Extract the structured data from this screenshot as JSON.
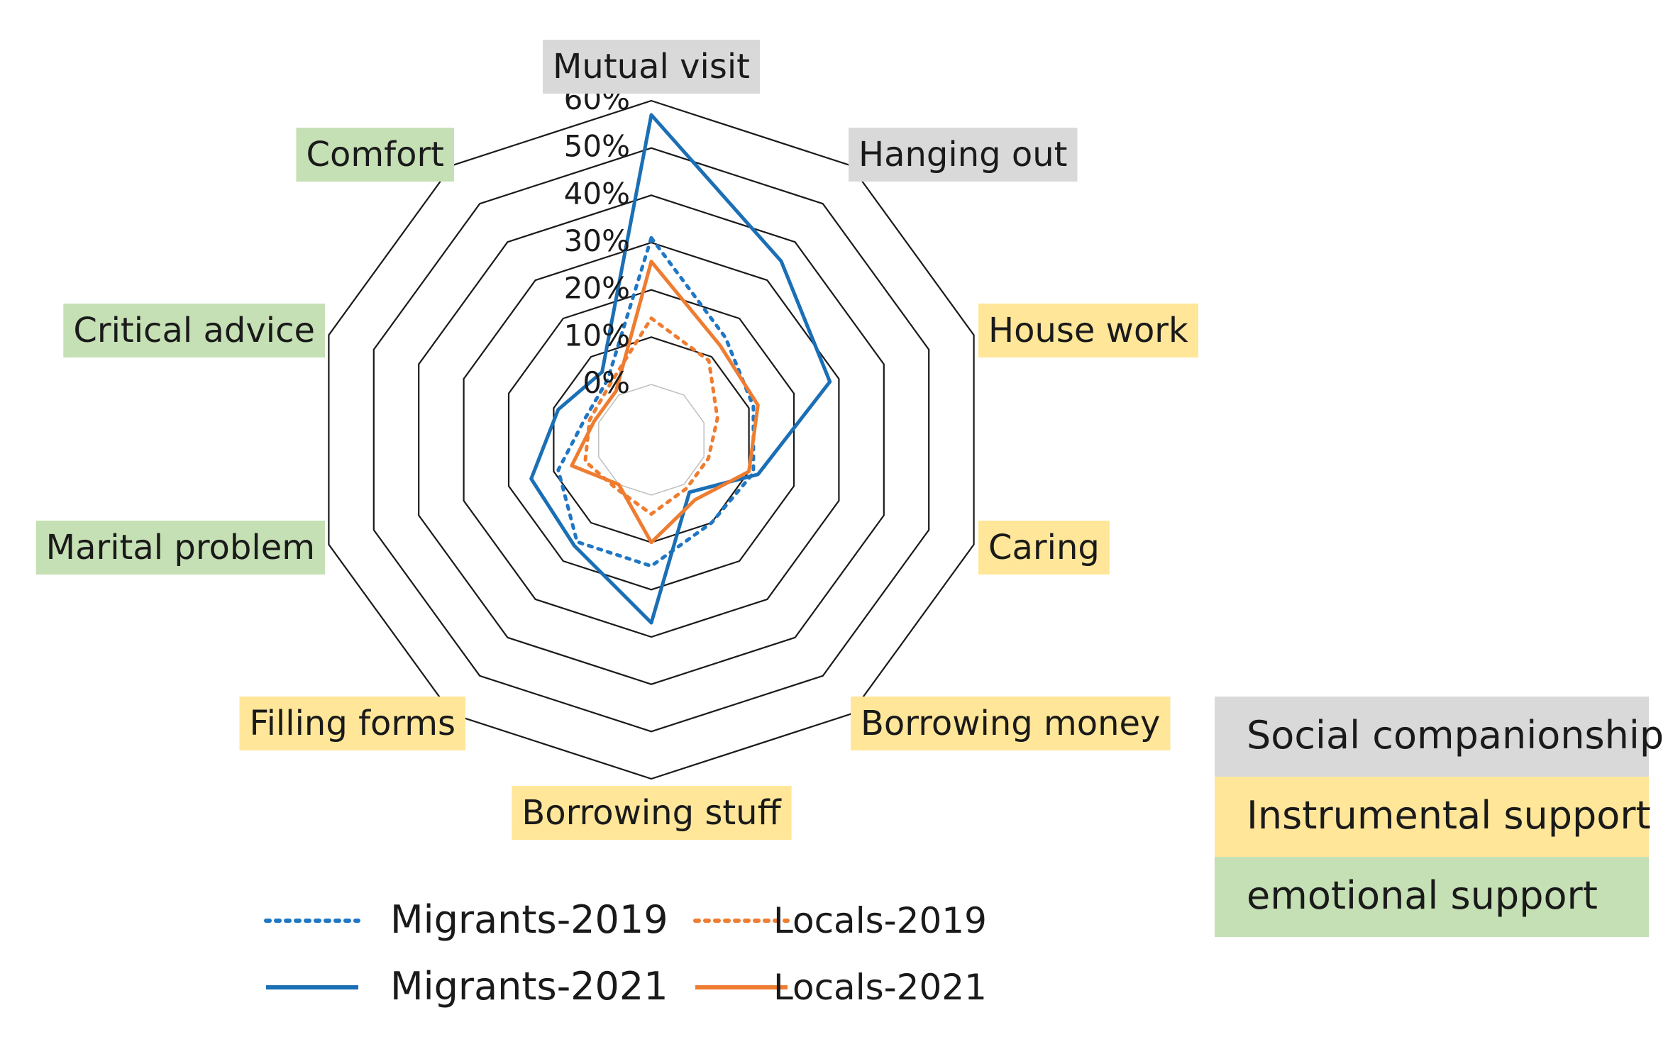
{
  "chart_data": {
    "type": "radar",
    "title": "",
    "axes": [
      {
        "label": "Mutual visit",
        "category": "Social companionship"
      },
      {
        "label": "Hanging out",
        "category": "Social companionship"
      },
      {
        "label": "House work",
        "category": "Instrumental support"
      },
      {
        "label": "Caring",
        "category": "Instrumental support"
      },
      {
        "label": "Borrowing money",
        "category": "Instrumental support"
      },
      {
        "label": "Borrowing stuff",
        "category": "Instrumental support"
      },
      {
        "label": "Filling forms",
        "category": "Instrumental support"
      },
      {
        "label": "Marital problem",
        "category": "emotional support"
      },
      {
        "label": "Critical advice",
        "category": "emotional support"
      },
      {
        "label": "Comfort",
        "category": "emotional support"
      }
    ],
    "radial_ticks": [
      "0%",
      "10%",
      "20%",
      "30%",
      "40%",
      "50%",
      "60%"
    ],
    "rmax": 60,
    "unit": "%",
    "series": [
      {
        "name": "Migrants-2019",
        "color": "#1f77c4",
        "style": "dotted",
        "values": [
          31,
          15,
          11,
          11,
          10,
          15,
          15,
          9,
          3,
          4
        ]
      },
      {
        "name": "Migrants-2021",
        "color": "#1a6fb5",
        "style": "solid",
        "values": [
          57,
          35,
          28,
          12,
          2,
          27,
          16,
          15,
          9,
          6
        ]
      },
      {
        "name": "Locals-2019",
        "color": "#ee7d31",
        "style": "dotted",
        "values": [
          14,
          9,
          3,
          1,
          1,
          4,
          1,
          3,
          2,
          3
        ]
      },
      {
        "name": "Locals-2021",
        "color": "#ee7d31",
        "style": "solid",
        "values": [
          26,
          13,
          12,
          10,
          4,
          10,
          0,
          6,
          1,
          1
        ]
      }
    ],
    "category_legend": [
      {
        "label": "Social companionship",
        "color": "#d9d9d9"
      },
      {
        "label": "Instrumental support",
        "color": "#ffe699"
      },
      {
        "label": "emotional support",
        "color": "#c5e0b4"
      }
    ]
  }
}
